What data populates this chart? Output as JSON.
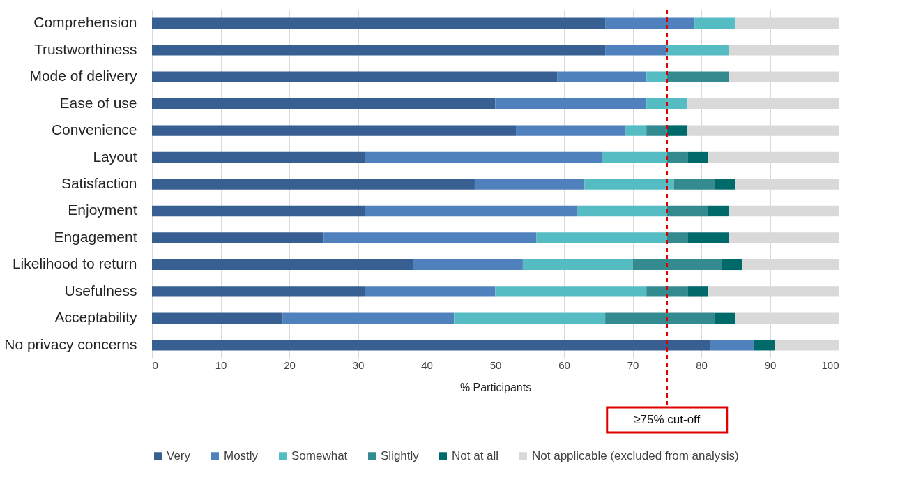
{
  "chart_data": {
    "type": "bar",
    "orientation": "horizontal",
    "stacked": true,
    "xlabel": "% Participants",
    "categories": [
      "Comprehension",
      "Trustworthiness",
      "Mode of delivery",
      "Ease of use",
      "Convenience",
      "Layout",
      "Satisfaction",
      "Enjoyment",
      "Engagement",
      "Likelihood to return",
      "Usefulness",
      "Acceptability",
      "No privacy concerns"
    ],
    "series": [
      {
        "name": "Very",
        "color": "#375f92",
        "values": [
          66,
          66,
          59,
          50,
          53,
          31,
          47,
          31,
          25,
          38,
          31,
          19,
          81.3
        ]
      },
      {
        "name": "Mostly",
        "color": "#4f81bd",
        "values": [
          13,
          9,
          13,
          22,
          16,
          34.5,
          16,
          31,
          31,
          16,
          19,
          25,
          6.3
        ]
      },
      {
        "name": "Somewhat",
        "color": "#55bcc4",
        "values": [
          6,
          9,
          3,
          6,
          3,
          9.5,
          13,
          13,
          19,
          16,
          22,
          22,
          0
        ]
      },
      {
        "name": "Slightly",
        "color": "#338a8f",
        "values": [
          0,
          0,
          9,
          0,
          3,
          3,
          6,
          6,
          3,
          13,
          6,
          16,
          0
        ]
      },
      {
        "name": "Not at all",
        "color": "#00696a",
        "values": [
          0,
          0,
          0,
          0,
          3,
          3,
          3,
          3,
          6,
          3,
          3,
          3,
          3.1
        ]
      },
      {
        "name": "Not applicable (excluded from analysis)",
        "color": "#d9d9d9",
        "values": [
          15,
          16,
          16,
          22,
          22,
          19,
          15,
          16,
          16,
          14,
          19,
          15,
          9.3
        ]
      }
    ],
    "xlim": [
      0,
      100
    ],
    "xticks": [
      0,
      10,
      20,
      30,
      40,
      50,
      60,
      70,
      80,
      90,
      100
    ],
    "grid": "x",
    "legend": "bottom",
    "ref_lines": [
      {
        "axis": "x",
        "value": 75,
        "label": "≥75% cut-off",
        "color": "#e00000",
        "line_style": "dashed"
      }
    ]
  }
}
